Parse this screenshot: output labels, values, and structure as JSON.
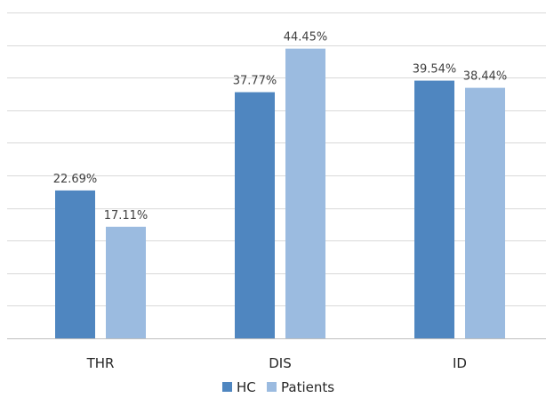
{
  "chart_data": {
    "type": "bar",
    "title": "",
    "xlabel": "",
    "ylabel": "",
    "categories": [
      "THR",
      "DIS",
      "ID"
    ],
    "series": [
      {
        "name": "HC",
        "color": "#4f86c0",
        "values": [
          22.69,
          37.77,
          39.54
        ],
        "labels": [
          "22.69%",
          "37.77%",
          "39.54%"
        ]
      },
      {
        "name": "Patients",
        "color": "#9bbbe0",
        "values": [
          17.11,
          44.45,
          38.44
        ],
        "labels": [
          "17.11%",
          "44.45%",
          "38.44%"
        ]
      }
    ],
    "ylim": [
      0,
      50
    ],
    "y_gridline_step": 5,
    "y_axis_tick_labels_shown": false,
    "grid": true,
    "legend_position": "bottom-center"
  }
}
